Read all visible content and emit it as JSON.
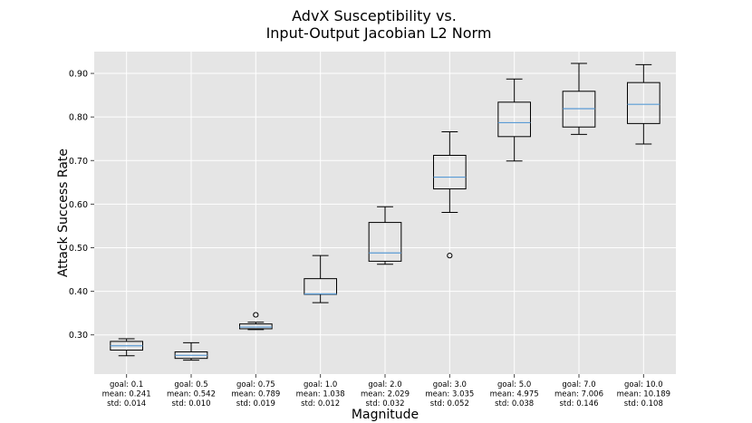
{
  "chart_data": {
    "type": "box",
    "title": [
      "AdvX Susceptibility vs.",
      "Input-Output Jacobian L2 Norm"
    ],
    "xlabel": "Magnitude",
    "ylabel": "Attack Success Rate",
    "ylim": [
      0.21,
      0.95
    ],
    "yticks": [
      0.3,
      0.4,
      0.5,
      0.6,
      0.7,
      0.8,
      0.9
    ],
    "ytick_labels": [
      "0.30",
      "0.40",
      "0.50",
      "0.60",
      "0.70",
      "0.80",
      "0.90"
    ],
    "grid": true,
    "colors": {
      "background": "#e5e5e5",
      "grid": "#ffffff",
      "box": "#000000",
      "median": "#5a9bd5"
    },
    "categories": [
      {
        "label": [
          "goal: 0.1",
          "mean: 0.241",
          "std: 0.014"
        ],
        "whisker_low": 0.252,
        "q1": 0.265,
        "median": 0.275,
        "q3": 0.285,
        "whisker_high": 0.291,
        "outliers": []
      },
      {
        "label": [
          "goal: 0.5",
          "mean: 0.542",
          "std: 0.010"
        ],
        "whisker_low": 0.242,
        "q1": 0.246,
        "median": 0.253,
        "q3": 0.261,
        "whisker_high": 0.282,
        "outliers": []
      },
      {
        "label": [
          "goal: 0.75",
          "mean: 0.789",
          "std: 0.019"
        ],
        "whisker_low": 0.312,
        "q1": 0.314,
        "median": 0.318,
        "q3": 0.325,
        "whisker_high": 0.329,
        "outliers": [
          0.346
        ]
      },
      {
        "label": [
          "goal: 1.0",
          "mean: 1.038",
          "std: 0.012"
        ],
        "whisker_low": 0.374,
        "q1": 0.393,
        "median": 0.394,
        "q3": 0.429,
        "whisker_high": 0.482,
        "outliers": []
      },
      {
        "label": [
          "goal: 2.0",
          "mean: 2.029",
          "std: 0.032"
        ],
        "whisker_low": 0.462,
        "q1": 0.469,
        "median": 0.488,
        "q3": 0.558,
        "whisker_high": 0.594,
        "outliers": []
      },
      {
        "label": [
          "goal: 3.0",
          "mean: 3.035",
          "std: 0.052"
        ],
        "whisker_low": 0.581,
        "q1": 0.635,
        "median": 0.662,
        "q3": 0.712,
        "whisker_high": 0.766,
        "outliers": [
          0.482
        ]
      },
      {
        "label": [
          "goal: 5.0",
          "mean: 4.975",
          "std: 0.038"
        ],
        "whisker_low": 0.699,
        "q1": 0.755,
        "median": 0.787,
        "q3": 0.834,
        "whisker_high": 0.887,
        "outliers": []
      },
      {
        "label": [
          "goal: 7.0",
          "mean: 7.006",
          "std: 0.146"
        ],
        "whisker_low": 0.76,
        "q1": 0.777,
        "median": 0.819,
        "q3": 0.859,
        "whisker_high": 0.923,
        "outliers": []
      },
      {
        "label": [
          "goal: 10.0",
          "mean: 10.189",
          "std: 0.108"
        ],
        "whisker_low": 0.738,
        "q1": 0.785,
        "median": 0.829,
        "q3": 0.879,
        "whisker_high": 0.92,
        "outliers": []
      }
    ]
  }
}
